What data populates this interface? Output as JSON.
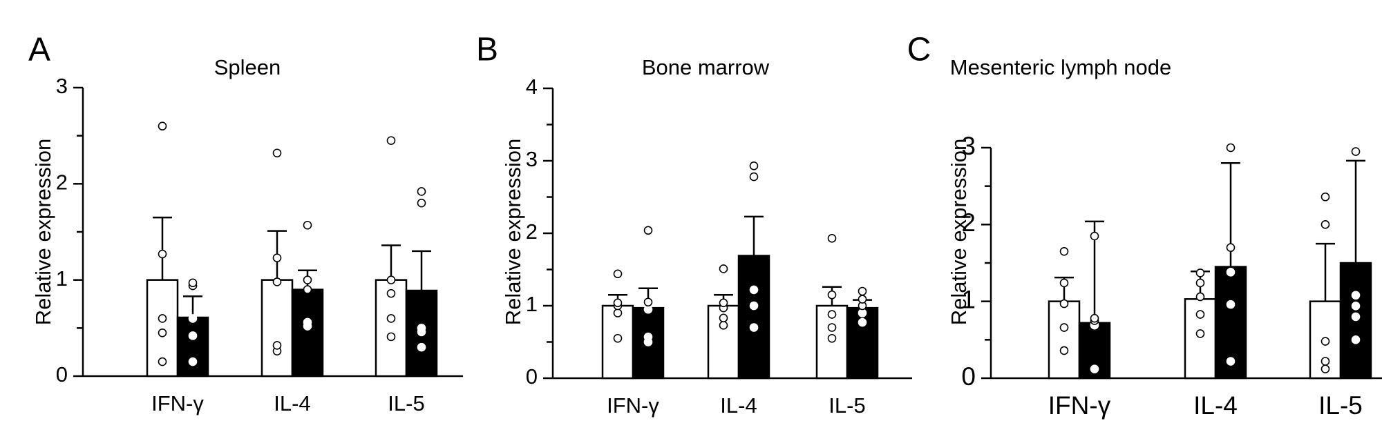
{
  "chart_data": [
    {
      "type": "bar",
      "panel_label": "A",
      "title": "Spleen",
      "ylabel": "Relative expression",
      "xlabel": "",
      "categories": [
        "IFN-γ",
        "IL-4",
        "IL-5"
      ],
      "ylim": [
        0,
        3
      ],
      "yticks": [
        "0",
        "1",
        "2",
        "3"
      ],
      "error_bars": "upper",
      "series": [
        {
          "fill": "#ffffff",
          "values": [
            1.0,
            1.0,
            1.0
          ],
          "errors": [
            0.65,
            0.51,
            0.36
          ],
          "points": [
            [
              0.15,
              0.45,
              0.6,
              1.27,
              2.6
            ],
            [
              0.26,
              0.32,
              0.98,
              1.23,
              2.32
            ],
            [
              0.41,
              0.6,
              0.86,
              1.0,
              2.45
            ]
          ]
        },
        {
          "fill": "#000000",
          "values": [
            0.61,
            0.9,
            0.89
          ],
          "errors": [
            0.22,
            0.2,
            0.41
          ],
          "points": [
            [
              0.15,
              0.42,
              0.6,
              0.94,
              0.97
            ],
            [
              0.52,
              0.56,
              0.9,
              1.0,
              1.57
            ],
            [
              0.3,
              0.46,
              0.5,
              1.8,
              1.92
            ]
          ]
        }
      ]
    },
    {
      "type": "bar",
      "panel_label": "B",
      "title": "Bone marrow",
      "ylabel": "Relative expression",
      "xlabel": "",
      "categories": [
        "IFN-γ",
        "IL-4",
        "IL-5"
      ],
      "ylim": [
        0,
        4
      ],
      "yticks": [
        "0",
        "1",
        "2",
        "3",
        "4"
      ],
      "error_bars": "upper",
      "series": [
        {
          "fill": "#ffffff",
          "values": [
            1.0,
            1.0,
            1.0
          ],
          "errors": [
            0.15,
            0.15,
            0.26
          ],
          "points": [
            [
              0.55,
              0.9,
              1.0,
              1.04,
              1.44
            ],
            [
              0.73,
              0.83,
              0.97,
              1.04,
              1.51
            ],
            [
              0.55,
              0.7,
              0.88,
              1.15,
              1.93
            ]
          ]
        },
        {
          "fill": "#000000",
          "values": [
            0.97,
            1.69,
            0.97
          ],
          "errors": [
            0.27,
            0.54,
            0.11
          ],
          "points": [
            [
              0.5,
              0.57,
              0.95,
              1.05,
              2.04
            ],
            [
              0.7,
              1.0,
              1.22,
              2.78,
              2.93
            ],
            [
              0.77,
              0.9,
              1.0,
              1.09,
              1.2
            ]
          ]
        }
      ]
    },
    {
      "type": "bar",
      "panel_label": "C",
      "title": "Mesenteric lymph node",
      "ylabel": "Relative expression",
      "xlabel": "",
      "categories": [
        "IFN-γ",
        "IL-4",
        "IL-5"
      ],
      "ylim": [
        0,
        3
      ],
      "yticks": [
        "0",
        "1",
        "2",
        "3"
      ],
      "error_bars": "upper",
      "series": [
        {
          "fill": "#ffffff",
          "values": [
            1.0,
            1.03,
            1.0
          ],
          "errors": [
            0.31,
            0.36,
            0.75
          ],
          "points": [
            [
              0.36,
              0.66,
              0.97,
              1.24,
              1.65
            ],
            [
              0.58,
              0.83,
              1.06,
              1.24,
              1.37
            ],
            [
              0.12,
              0.22,
              0.48,
              2.0,
              2.36
            ]
          ]
        },
        {
          "fill": "#000000",
          "values": [
            0.72,
            1.45,
            1.5
          ],
          "errors": [
            1.32,
            1.35,
            1.33
          ],
          "points": [
            [
              0.12,
              0.69,
              0.75,
              0.78,
              1.85
            ],
            [
              0.22,
              0.96,
              1.38,
              1.7,
              3.0
            ],
            [
              0.5,
              0.8,
              0.94,
              1.08,
              2.95
            ]
          ]
        }
      ]
    }
  ]
}
